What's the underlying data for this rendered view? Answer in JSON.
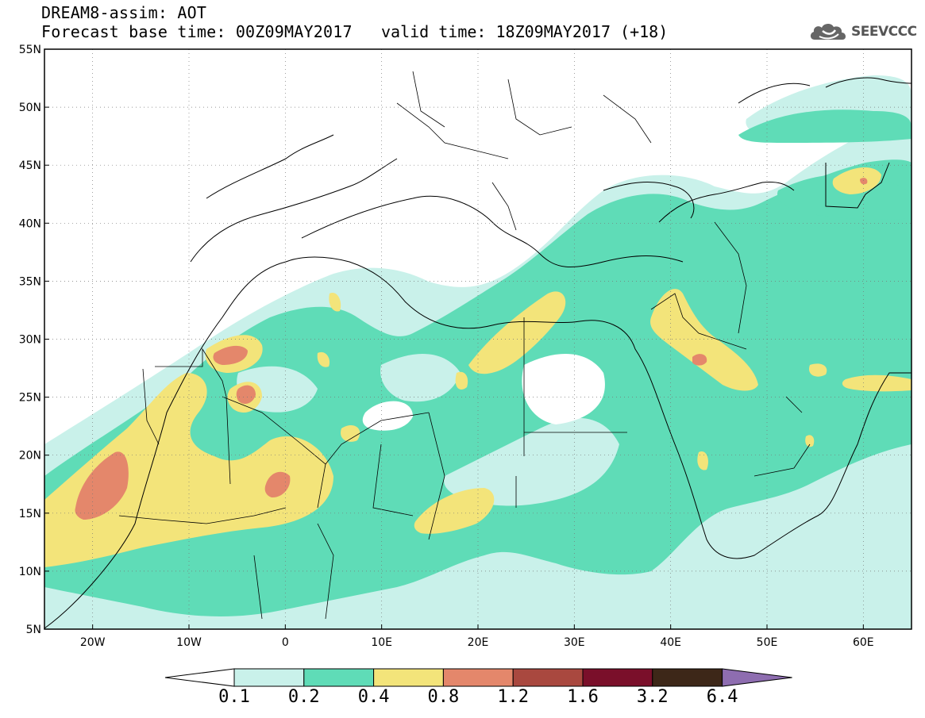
{
  "header": {
    "title_line1": "DREAM8-assim: AOT",
    "forecast_base": "Forecast base time: 00Z09MAY2017",
    "valid_time": "valid time: 18Z09MAY2017 (+18)",
    "logo_text": "SEEVCCC"
  },
  "map": {
    "projection": "lat-lon",
    "lon_range": [
      -25,
      65
    ],
    "lat_range": [
      5,
      55
    ],
    "lat_ticks": [
      "5N",
      "10N",
      "15N",
      "20N",
      "25N",
      "30N",
      "35N",
      "40N",
      "45N",
      "50N",
      "55N"
    ],
    "lon_ticks": [
      "20W",
      "10W",
      "0",
      "10E",
      "20E",
      "30E",
      "40E",
      "50E",
      "60E"
    ],
    "grid": "dotted"
  },
  "colorbar": {
    "labels": [
      "0.1",
      "0.2",
      "0.4",
      "0.8",
      "1.2",
      "1.6",
      "3.2",
      "6.4"
    ],
    "colors": [
      "#ffffff",
      "#c9f1ea",
      "#5fdcb7",
      "#f3e47a",
      "#e4876b",
      "#a9483f",
      "#7a0f2a",
      "#3d2718",
      "#8e6db0"
    ]
  }
}
